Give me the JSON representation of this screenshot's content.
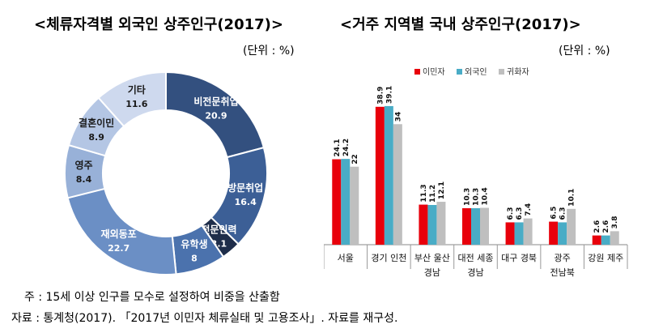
{
  "left": {
    "title": "<체류자격별 외국인 상주인구(2017)>",
    "unit": "(단위 : %)"
  },
  "right": {
    "title": "<거주 지역별 국내 상주인구(2017)>",
    "unit": "(단위 : %)"
  },
  "notes": {
    "note1": "주 : 15세 이상 인구를 모수로 설정하여 비중을 산출함",
    "note2": "자료 : 통계청(2017). 「2017년 이민자 체류실태 및 고용조사」. 자료를 재구성."
  },
  "chart_data": [
    {
      "type": "pie",
      "title": "<체류자격별 외국인 상주인구(2017)>",
      "donut": true,
      "labels": [
        "비전문취업",
        "방문취업",
        "전문인력",
        "유학생",
        "재외동포",
        "영주",
        "결혼이민",
        "기타"
      ],
      "values": [
        20.9,
        16.4,
        3.1,
        8,
        22.7,
        8.4,
        8.9,
        11.6
      ],
      "value_labels": [
        "20.9",
        "16.4",
        "3.1",
        "8",
        "22.7",
        "8.4",
        "8.9",
        "11.6"
      ],
      "colors": [
        "#33507f",
        "#3c5f96",
        "#1e2d4a",
        "#4b72ad",
        "#6b8fc5",
        "#98b1d8",
        "#b4c6e4",
        "#ced9ee"
      ]
    },
    {
      "type": "bar",
      "title": "<거주 지역별 국내 상주인구(2017)>",
      "categories": [
        [
          "서울"
        ],
        [
          "경기 인천"
        ],
        [
          "부산 울산",
          "경남"
        ],
        [
          "대전 세종",
          "경남"
        ],
        [
          "대구 경북"
        ],
        [
          "광주",
          "전남북"
        ],
        [
          "강원 제주"
        ]
      ],
      "series": [
        {
          "name": "이민자",
          "color": "#e8000b",
          "values": [
            24.1,
            38.9,
            11.3,
            10.3,
            6.3,
            6.5,
            2.6
          ],
          "labels": [
            "24.1",
            "38.9",
            "11.3",
            "10.3",
            "6.3",
            "6.5",
            "2.6"
          ]
        },
        {
          "name": "외국인",
          "color": "#49acc6",
          "values": [
            24.2,
            39.1,
            11.2,
            10.3,
            6.3,
            6.3,
            2.6
          ],
          "labels": [
            "24.2",
            "39.1",
            "11.2",
            "10.3",
            "6.3",
            "6.3",
            "2.6"
          ]
        },
        {
          "name": "귀화자",
          "color": "#bfbfbf",
          "values": [
            22,
            34,
            12.1,
            10.4,
            7.4,
            10.1,
            3.8
          ],
          "labels": [
            "22",
            "34",
            "12.1",
            "10.4",
            "7.4",
            "10.1",
            "3.8"
          ]
        }
      ],
      "legend": "top",
      "grid": false
    }
  ]
}
